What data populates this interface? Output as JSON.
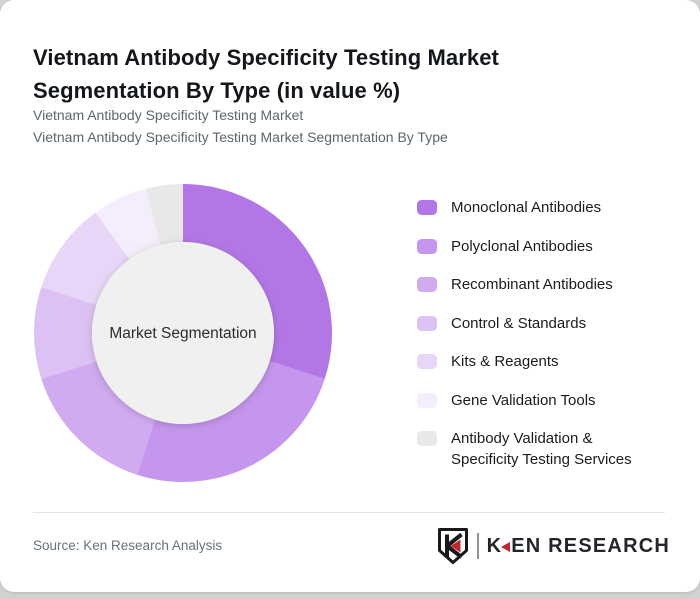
{
  "page": {
    "background_color": "#d2d2d2",
    "card_background_color": "#ffffff"
  },
  "header": {
    "title": "Vietnam Antibody Specificity Testing Market Segmentation By Type (in value %)",
    "subtitle_line1": "Vietnam Antibody Specificity Testing Market",
    "subtitle_line2": "Vietnam Antibody Specificity Testing Market Segmentation By Type"
  },
  "chart_data": {
    "type": "pie",
    "subtype": "donut",
    "title": "Vietnam Antibody Specificity Testing Market Segmentation By Type (in value %)",
    "unit": "value %",
    "center_label": "Market Segmentation",
    "start_angle_deg": 0,
    "direction": "clockwise",
    "legend_position": "right",
    "hole_color": "#f1f0f1",
    "segments": [
      {
        "label": "Monoclonal Antibodies",
        "value": 30,
        "color": "#b377e5"
      },
      {
        "label": "Polyclonal Antibodies",
        "value": 25,
        "color": "#c596ed"
      },
      {
        "label": "Recombinant Antibodies",
        "value": 15,
        "color": "#d0abf0"
      },
      {
        "label": "Control & Standards",
        "value": 10,
        "color": "#dcc2f4"
      },
      {
        "label": "Kits & Reagents",
        "value": 10,
        "color": "#e8d6f8"
      },
      {
        "label": "Gene Validation Tools",
        "value": 6,
        "color": "#f4edfc"
      },
      {
        "label": "Antibody Validation & Specificity Testing Services",
        "value": 4,
        "color": "#e9e8e9"
      }
    ]
  },
  "footer": {
    "source": "Source: Ken Research Analysis",
    "logo": {
      "first_letter": "K",
      "rest": "EN RESEARCH",
      "accent_color": "#c0272d"
    }
  }
}
